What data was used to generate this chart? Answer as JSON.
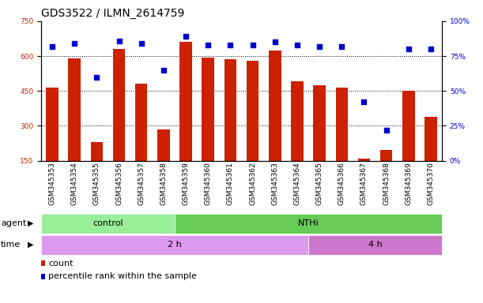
{
  "title": "GDS3522 / ILMN_2614759",
  "samples": [
    "GSM345353",
    "GSM345354",
    "GSM345355",
    "GSM345356",
    "GSM345357",
    "GSM345358",
    "GSM345359",
    "GSM345360",
    "GSM345361",
    "GSM345362",
    "GSM345363",
    "GSM345364",
    "GSM345365",
    "GSM345366",
    "GSM345367",
    "GSM345368",
    "GSM345369",
    "GSM345370"
  ],
  "counts": [
    465,
    590,
    230,
    630,
    480,
    285,
    660,
    595,
    585,
    580,
    625,
    490,
    475,
    465,
    160,
    195,
    450,
    340
  ],
  "percentile_ranks": [
    82,
    84,
    60,
    86,
    84,
    65,
    89,
    83,
    83,
    83,
    85,
    83,
    82,
    82,
    42,
    22,
    80,
    80
  ],
  "ylim_left": [
    150,
    750
  ],
  "ylim_right": [
    0,
    100
  ],
  "yticks_left": [
    150,
    300,
    450,
    600,
    750
  ],
  "yticks_right": [
    0,
    25,
    50,
    75,
    100
  ],
  "ytick_right_labels": [
    "0%",
    "25%",
    "50%",
    "75%",
    "100%"
  ],
  "bar_color": "#cc2200",
  "dot_color": "#0000cc",
  "agent_groups": [
    {
      "label": "control",
      "start": 0,
      "end": 6,
      "color": "#99ee99"
    },
    {
      "label": "NTHi",
      "start": 6,
      "end": 18,
      "color": "#66cc55"
    }
  ],
  "time_groups": [
    {
      "label": "2 h",
      "start": 0,
      "end": 12,
      "color": "#dd99ee"
    },
    {
      "label": "4 h",
      "start": 12,
      "end": 18,
      "color": "#cc77cc"
    }
  ],
  "legend_count_label": "count",
  "legend_pct_label": "percentile rank within the sample",
  "title_fontsize": 10,
  "tick_fontsize": 6.5,
  "label_fontsize": 8,
  "annotation_fontsize": 8,
  "grid_yticks": [
    300,
    450,
    600
  ]
}
